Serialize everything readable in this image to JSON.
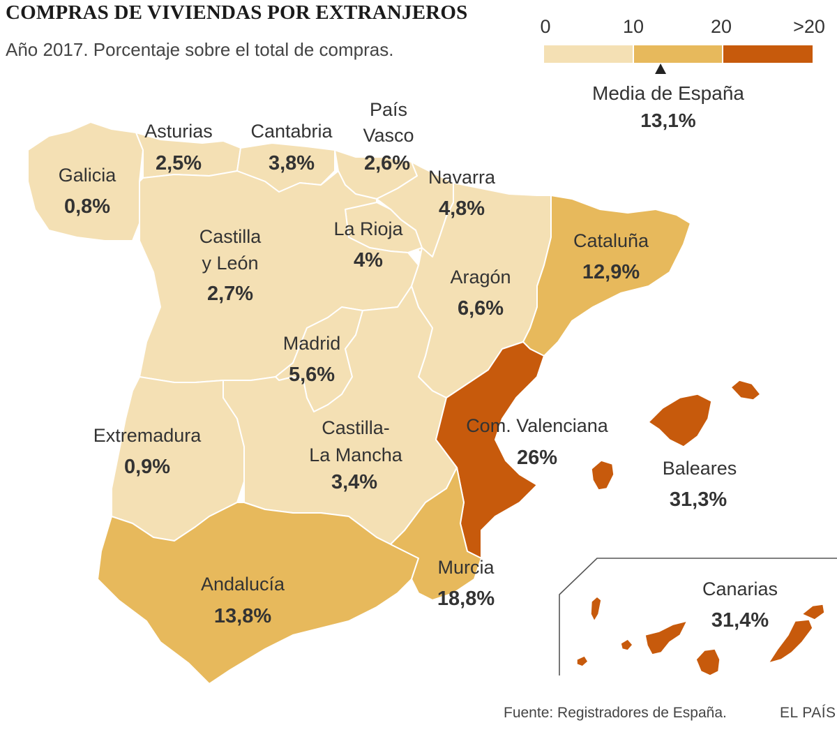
{
  "title": "COMPRAS DE VIVIENDAS POR EXTRANJEROS",
  "subtitle": "Año 2017. Porcentaje sobre el total de compras.",
  "legend": {
    "ticks": [
      "0",
      "10",
      "20",
      ">20"
    ],
    "colors": [
      "#f4e0b4",
      "#e7b95c",
      "#c75a0c"
    ],
    "average_label": "Media de España",
    "average_value": "13,1%",
    "average": 13.1
  },
  "regions": [
    {
      "id": "galicia",
      "lines": [
        "Galicia"
      ],
      "value": "0,8%",
      "pct": 0.8
    },
    {
      "id": "asturias",
      "lines": [
        "Asturias"
      ],
      "value": "2,5%",
      "pct": 2.5
    },
    {
      "id": "cantabria",
      "lines": [
        "Cantabria"
      ],
      "value": "3,8%",
      "pct": 3.8
    },
    {
      "id": "pais-vasco",
      "lines": [
        "País",
        "Vasco"
      ],
      "value": "2,6%",
      "pct": 2.6
    },
    {
      "id": "navarra",
      "lines": [
        "Navarra"
      ],
      "value": "4,8%",
      "pct": 4.8
    },
    {
      "id": "la-rioja",
      "lines": [
        "La Rioja"
      ],
      "value": "4%",
      "pct": 4
    },
    {
      "id": "castilla-y-leon",
      "lines": [
        "Castilla",
        "y León"
      ],
      "value": "2,7%",
      "pct": 2.7
    },
    {
      "id": "aragon",
      "lines": [
        "Aragón"
      ],
      "value": "6,6%",
      "pct": 6.6
    },
    {
      "id": "cataluna",
      "lines": [
        "Cataluña"
      ],
      "value": "12,9%",
      "pct": 12.9
    },
    {
      "id": "madrid",
      "lines": [
        "Madrid"
      ],
      "value": "5,6%",
      "pct": 5.6
    },
    {
      "id": "extremadura",
      "lines": [
        "Extremadura"
      ],
      "value": "0,9%",
      "pct": 0.9
    },
    {
      "id": "castilla-la-mancha",
      "lines": [
        "Castilla-",
        "La Mancha"
      ],
      "value": "3,4%",
      "pct": 3.4
    },
    {
      "id": "com-valenciana",
      "lines": [
        "Com. Valenciana"
      ],
      "value": "26%",
      "pct": 26
    },
    {
      "id": "baleares",
      "lines": [
        "Baleares"
      ],
      "value": "31,3%",
      "pct": 31.3
    },
    {
      "id": "andalucia",
      "lines": [
        "Andalucía"
      ],
      "value": "13,8%",
      "pct": 13.8
    },
    {
      "id": "murcia",
      "lines": [
        "Murcia"
      ],
      "value": "18,8%",
      "pct": 18.8
    },
    {
      "id": "canarias",
      "lines": [
        "Canarias"
      ],
      "value": "31,4%",
      "pct": 31.4
    }
  ],
  "source": "Fuente: Registradores de España.",
  "brand": "EL PAÍS"
}
